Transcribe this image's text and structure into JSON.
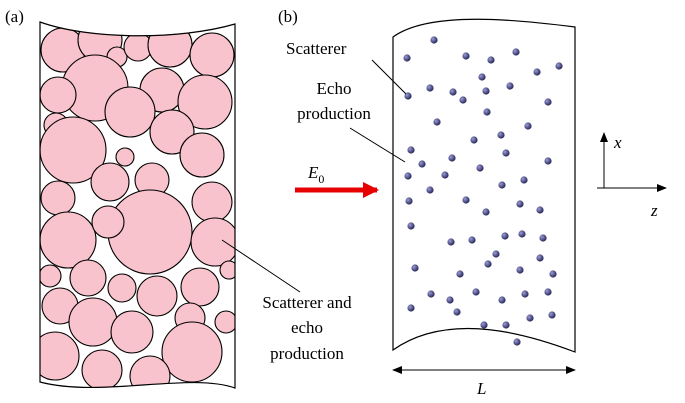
{
  "panels": {
    "a": {
      "label": "(a)",
      "annotation": [
        "Scatterer and",
        "echo",
        "production"
      ]
    },
    "b": {
      "label": "(b)",
      "scatterer": "Scatterer",
      "echo": [
        "Echo",
        "production"
      ],
      "field": {
        "symbol": "E",
        "subscript": "0"
      },
      "length": "L"
    }
  },
  "axes": {
    "x": "x",
    "z": "z"
  }
}
